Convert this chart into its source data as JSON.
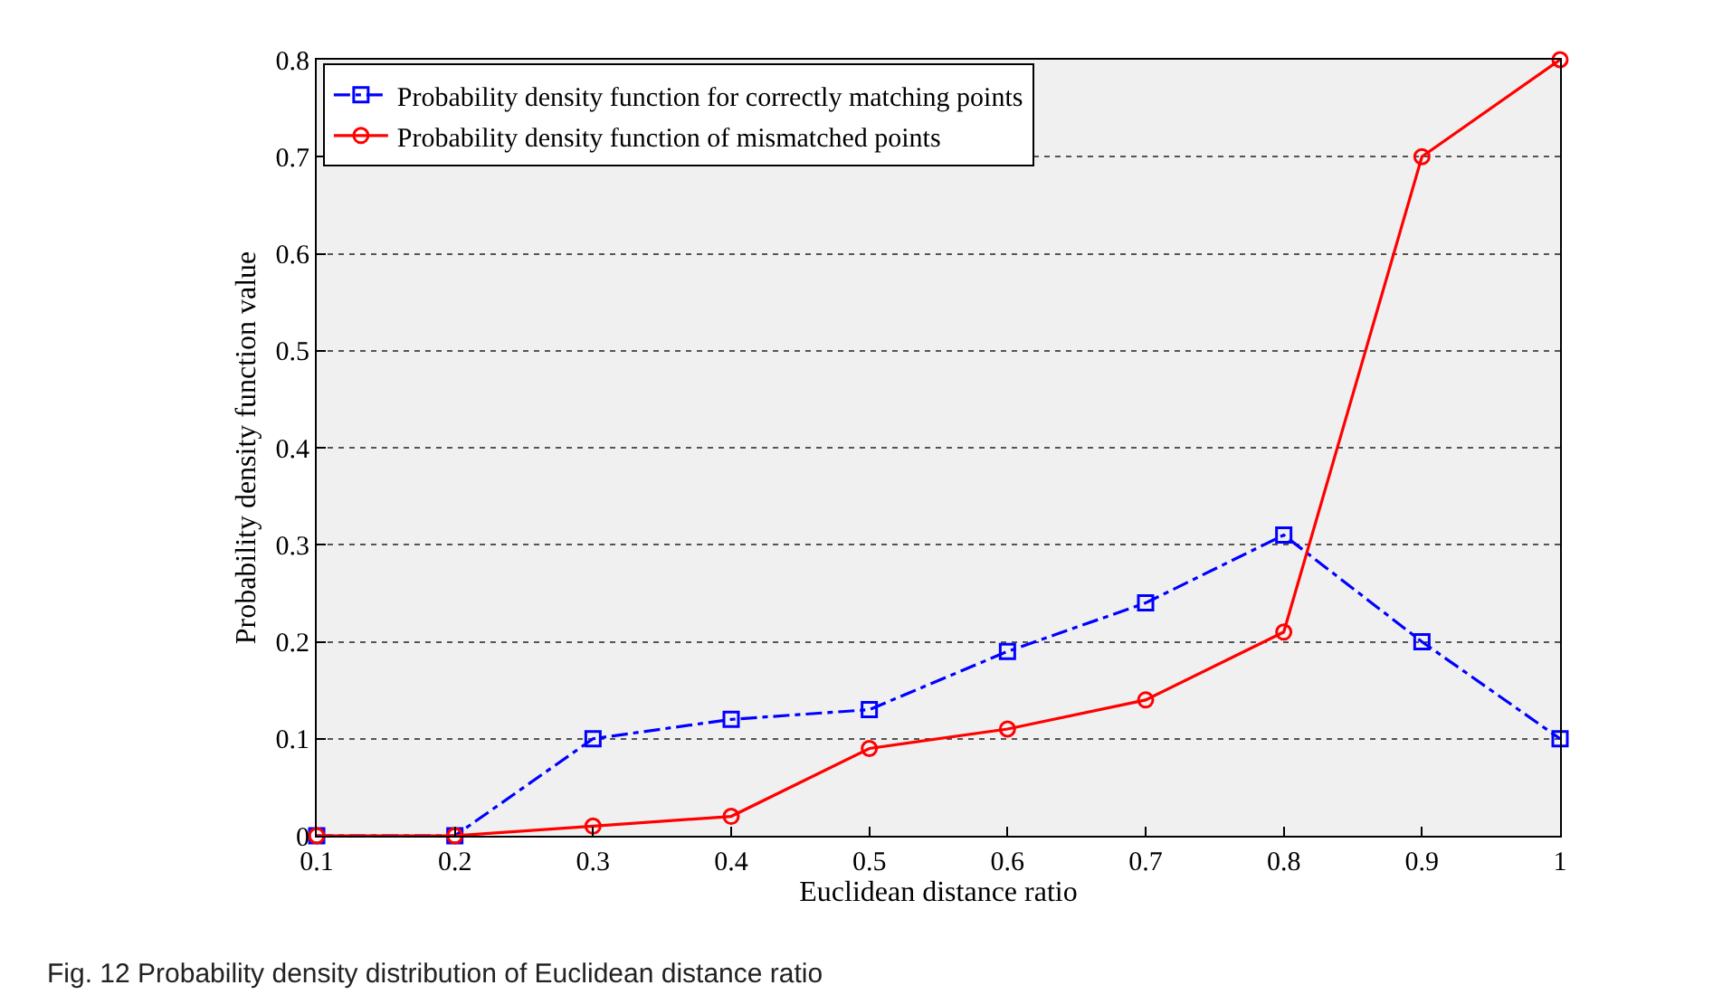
{
  "chart_data": {
    "type": "line",
    "xlabel": "Euclidean distance ratio",
    "ylabel": "Probability density function value",
    "annotations": [
      "Fig. 12 Probability density distribution of Euclidean distance ratio"
    ],
    "x": [
      0.1,
      0.2,
      0.3,
      0.4,
      0.5,
      0.6,
      0.7,
      0.8,
      0.9,
      1
    ],
    "series": [
      {
        "name": "Probability density function for correctly matching points",
        "color": "#0000ff",
        "marker": "square",
        "line_style": "dashed",
        "values": [
          0,
          0,
          0.1,
          0.12,
          0.13,
          0.19,
          0.24,
          0.31,
          0.2,
          0.1
        ]
      },
      {
        "name": "Probability density function of mismatched points",
        "color": "#ff0000",
        "marker": "circle",
        "line_style": "solid",
        "values": [
          0,
          0,
          0.01,
          0.02,
          0.09,
          0.11,
          0.14,
          0.21,
          0.7,
          0.8
        ]
      }
    ],
    "xlim": [
      0.1,
      1
    ],
    "xticks": [
      0.1,
      0.2,
      0.3,
      0.4,
      0.5,
      0.6,
      0.7,
      0.8,
      0.9,
      1
    ],
    "ylim": [
      0,
      0.8
    ],
    "yticks": [
      0,
      0.1,
      0.2,
      0.3,
      0.4,
      0.5,
      0.6,
      0.7,
      0.8
    ],
    "grid": "y",
    "legend": "top left"
  }
}
